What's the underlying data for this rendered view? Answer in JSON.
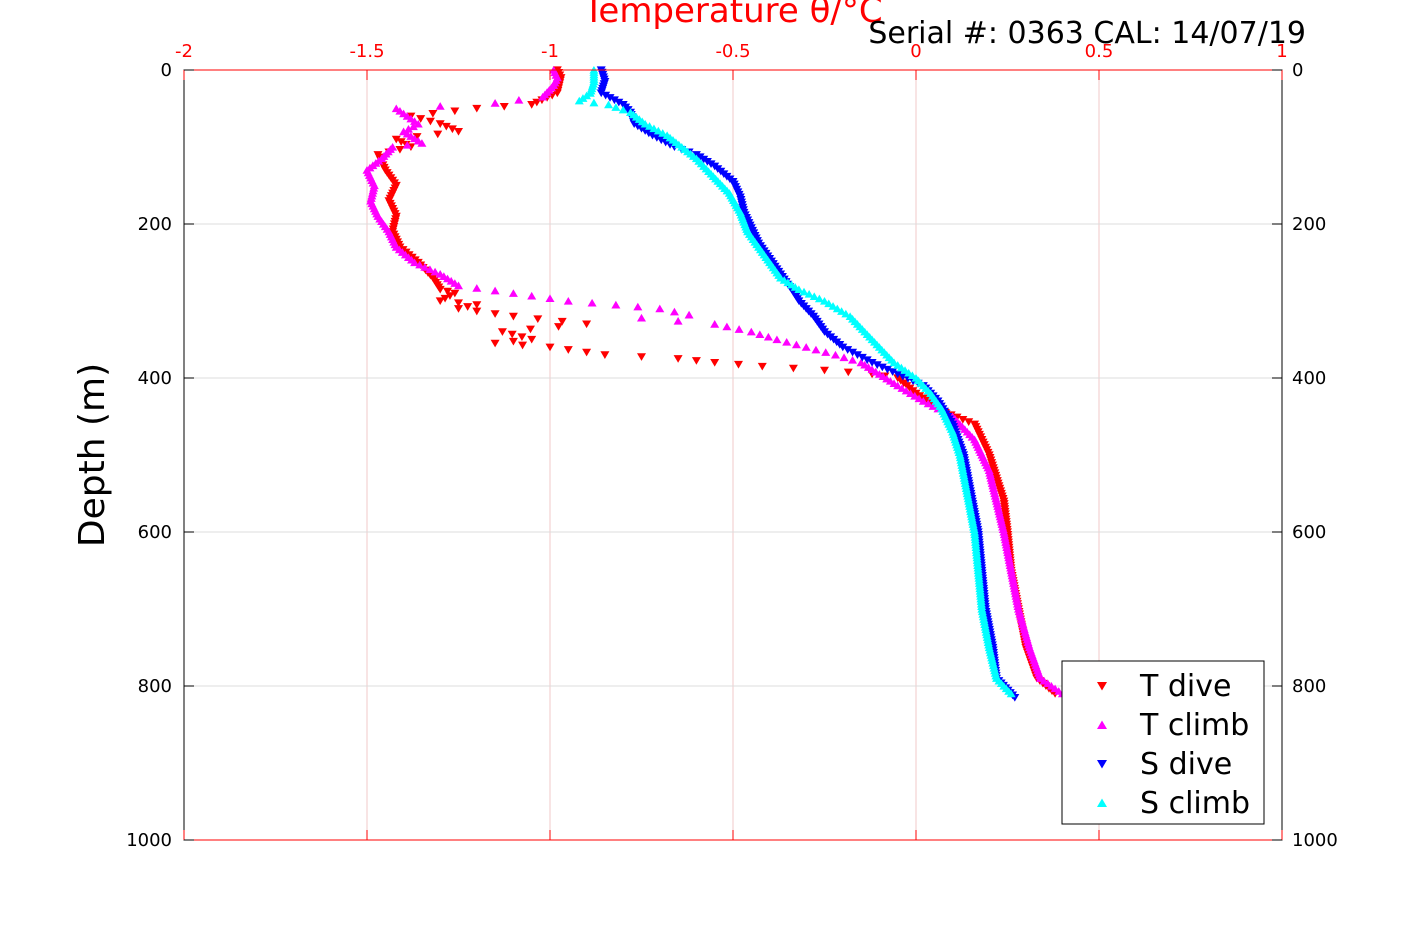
{
  "chart_data": {
    "type": "scatter",
    "title": "Temperature θ/°C",
    "subtitle": "Serial #: 0363  CAL: 14/07/19",
    "xlabel": "Temperature θ/°C",
    "ylabel": "Depth (m)",
    "xlim": [
      -2,
      1
    ],
    "ylim": [
      0,
      1000
    ],
    "y_inverted": true,
    "x_ticks": [
      "-2",
      "-1.5",
      "-1",
      "-0.5",
      "0",
      "0.5",
      "1"
    ],
    "y_ticks": [
      "0",
      "200",
      "400",
      "600",
      "800",
      "1000"
    ],
    "grid": true,
    "legend_position": "bottom-right",
    "colors": {
      "top_axis": "#ff0000",
      "grid": "#dcdcdc",
      "axis": "#000000"
    },
    "series": [
      {
        "name": "T dive",
        "marker": "triangle-down",
        "color": "#ff0000",
        "points": [
          [
            -0.98,
            0
          ],
          [
            -0.97,
            10
          ],
          [
            -0.98,
            30
          ],
          [
            -1.05,
            45
          ],
          [
            -1.2,
            50
          ],
          [
            -1.38,
            60
          ],
          [
            -1.3,
            70
          ],
          [
            -1.25,
            80
          ],
          [
            -1.42,
            90
          ],
          [
            -1.38,
            100
          ],
          [
            -1.47,
            110
          ],
          [
            -1.45,
            130
          ],
          [
            -1.42,
            150
          ],
          [
            -1.44,
            170
          ],
          [
            -1.42,
            190
          ],
          [
            -1.43,
            210
          ],
          [
            -1.41,
            230
          ],
          [
            -1.36,
            250
          ],
          [
            -1.32,
            270
          ],
          [
            -1.3,
            285
          ],
          [
            -1.26,
            290
          ],
          [
            -1.3,
            300
          ],
          [
            -1.2,
            305
          ],
          [
            -1.25,
            310
          ],
          [
            -1.1,
            320
          ],
          [
            -0.9,
            330
          ],
          [
            -1.13,
            340
          ],
          [
            -1.05,
            350
          ],
          [
            -1.15,
            355
          ],
          [
            -1.0,
            360
          ],
          [
            -0.85,
            370
          ],
          [
            -0.65,
            375
          ],
          [
            -0.55,
            380
          ],
          [
            -0.42,
            385
          ],
          [
            -0.25,
            390
          ],
          [
            -0.12,
            395
          ],
          [
            -0.05,
            400
          ],
          [
            0.0,
            420
          ],
          [
            0.08,
            445
          ],
          [
            0.16,
            460
          ],
          [
            0.18,
            480
          ],
          [
            0.2,
            500
          ],
          [
            0.22,
            530
          ],
          [
            0.24,
            560
          ],
          [
            0.25,
            600
          ],
          [
            0.26,
            650
          ],
          [
            0.28,
            700
          ],
          [
            0.3,
            750
          ],
          [
            0.33,
            790
          ],
          [
            0.38,
            810
          ]
        ]
      },
      {
        "name": "T climb",
        "marker": "triangle-up",
        "color": "#ff00ff",
        "points": [
          [
            -0.99,
            0
          ],
          [
            -0.98,
            10
          ],
          [
            -0.99,
            20
          ],
          [
            -1.02,
            35
          ],
          [
            -1.15,
            43
          ],
          [
            -1.3,
            47
          ],
          [
            -1.42,
            50
          ],
          [
            -1.39,
            60
          ],
          [
            -1.36,
            70
          ],
          [
            -1.4,
            80
          ],
          [
            -1.35,
            95
          ],
          [
            -1.43,
            100
          ],
          [
            -1.46,
            115
          ],
          [
            -1.5,
            130
          ],
          [
            -1.48,
            150
          ],
          [
            -1.49,
            170
          ],
          [
            -1.47,
            190
          ],
          [
            -1.44,
            210
          ],
          [
            -1.42,
            230
          ],
          [
            -1.37,
            250
          ],
          [
            -1.3,
            265
          ],
          [
            -1.25,
            280
          ],
          [
            -1.1,
            290
          ],
          [
            -0.95,
            300
          ],
          [
            -0.82,
            305
          ],
          [
            -0.7,
            310
          ],
          [
            -0.62,
            318
          ],
          [
            -0.75,
            322
          ],
          [
            -0.55,
            330
          ],
          [
            -0.45,
            340
          ],
          [
            -0.38,
            350
          ],
          [
            -0.3,
            360
          ],
          [
            -0.22,
            370
          ],
          [
            -0.15,
            380
          ],
          [
            -0.1,
            395
          ],
          [
            -0.05,
            410
          ],
          [
            0.02,
            430
          ],
          [
            0.1,
            450
          ],
          [
            0.16,
            480
          ],
          [
            0.2,
            520
          ],
          [
            0.22,
            560
          ],
          [
            0.24,
            600
          ],
          [
            0.26,
            650
          ],
          [
            0.28,
            700
          ],
          [
            0.31,
            750
          ],
          [
            0.34,
            790
          ],
          [
            0.4,
            810
          ]
        ]
      },
      {
        "name": "S dive",
        "marker": "triangle-down",
        "color": "#0000ff",
        "points": [
          [
            -0.86,
            0
          ],
          [
            -0.85,
            15
          ],
          [
            -0.86,
            30
          ],
          [
            -0.8,
            45
          ],
          [
            -0.78,
            55
          ],
          [
            -0.77,
            70
          ],
          [
            -0.72,
            85
          ],
          [
            -0.66,
            100
          ],
          [
            -0.6,
            110
          ],
          [
            -0.55,
            125
          ],
          [
            -0.5,
            145
          ],
          [
            -0.48,
            165
          ],
          [
            -0.47,
            185
          ],
          [
            -0.45,
            205
          ],
          [
            -0.43,
            225
          ],
          [
            -0.4,
            245
          ],
          [
            -0.37,
            265
          ],
          [
            -0.34,
            285
          ],
          [
            -0.32,
            300
          ],
          [
            -0.28,
            320
          ],
          [
            -0.25,
            340
          ],
          [
            -0.2,
            360
          ],
          [
            -0.12,
            380
          ],
          [
            -0.05,
            395
          ],
          [
            0.02,
            410
          ],
          [
            0.06,
            430
          ],
          [
            0.1,
            460
          ],
          [
            0.13,
            500
          ],
          [
            0.15,
            550
          ],
          [
            0.17,
            600
          ],
          [
            0.18,
            650
          ],
          [
            0.19,
            700
          ],
          [
            0.21,
            750
          ],
          [
            0.22,
            790
          ],
          [
            0.27,
            815
          ]
        ]
      },
      {
        "name": "S climb",
        "marker": "triangle-up",
        "color": "#00ffff",
        "points": [
          [
            -0.88,
            0
          ],
          [
            -0.88,
            15
          ],
          [
            -0.89,
            30
          ],
          [
            -0.92,
            40
          ],
          [
            -0.84,
            45
          ],
          [
            -0.78,
            55
          ],
          [
            -0.74,
            70
          ],
          [
            -0.68,
            85
          ],
          [
            -0.64,
            100
          ],
          [
            -0.6,
            115
          ],
          [
            -0.56,
            135
          ],
          [
            -0.51,
            160
          ],
          [
            -0.48,
            185
          ],
          [
            -0.46,
            210
          ],
          [
            -0.43,
            230
          ],
          [
            -0.4,
            250
          ],
          [
            -0.37,
            270
          ],
          [
            -0.32,
            285
          ],
          [
            -0.25,
            300
          ],
          [
            -0.18,
            320
          ],
          [
            -0.14,
            340
          ],
          [
            -0.1,
            360
          ],
          [
            -0.06,
            380
          ],
          [
            0.0,
            400
          ],
          [
            0.04,
            420
          ],
          [
            0.07,
            440
          ],
          [
            0.1,
            470
          ],
          [
            0.12,
            500
          ],
          [
            0.14,
            550
          ],
          [
            0.16,
            600
          ],
          [
            0.17,
            650
          ],
          [
            0.18,
            700
          ],
          [
            0.2,
            750
          ],
          [
            0.22,
            790
          ],
          [
            0.26,
            810
          ]
        ]
      }
    ]
  }
}
